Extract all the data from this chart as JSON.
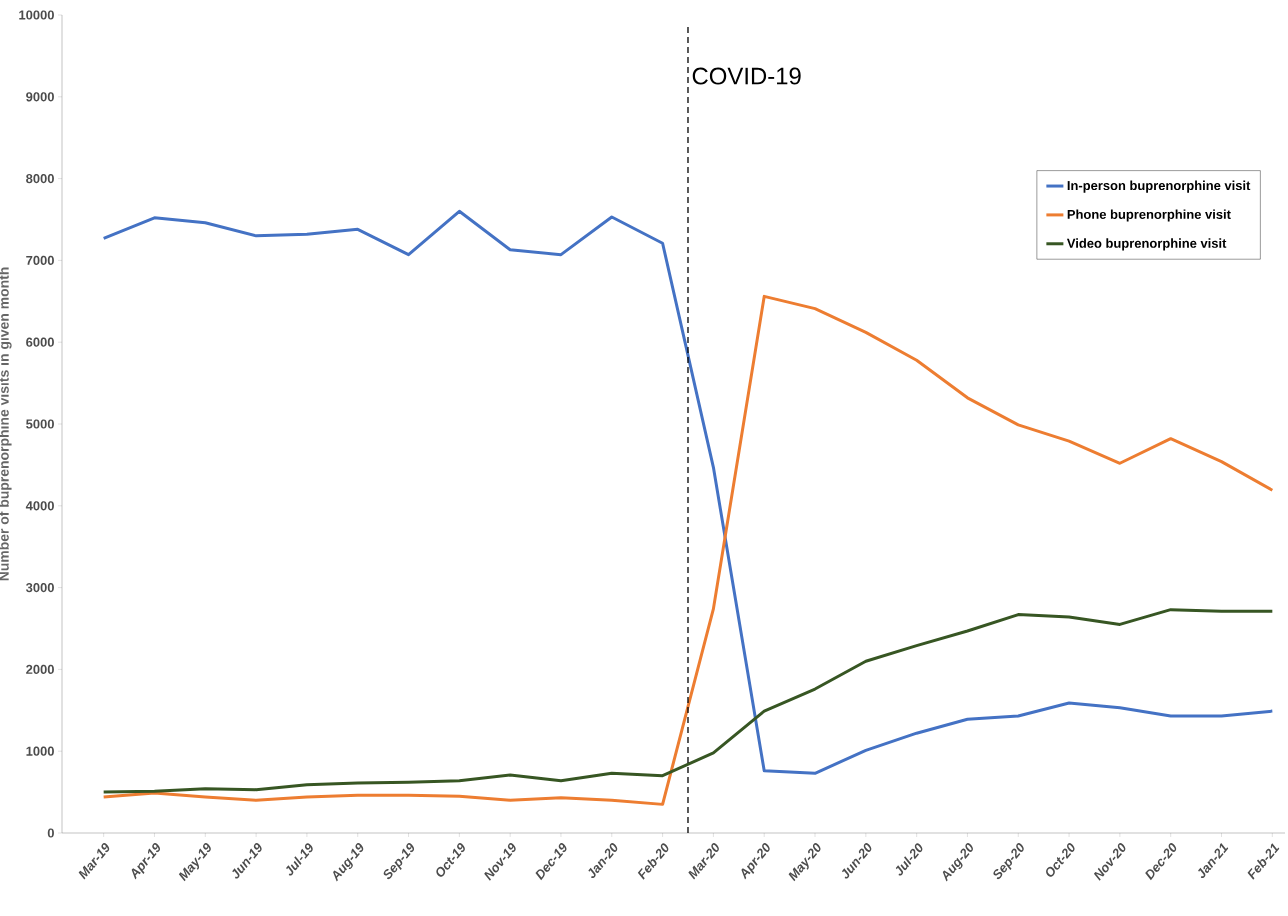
{
  "chart_data": {
    "type": "line",
    "ylabel": "Number of buprenorphine visits in given month",
    "categories": [
      "Mar-19",
      "Apr-19",
      "May-19",
      "Jun-19",
      "Jul-19",
      "Aug-19",
      "Sep-19",
      "Oct-19",
      "Nov-19",
      "Dec-19",
      "Jan-20",
      "Feb-20",
      "Mar-20",
      "Apr-20",
      "May-20",
      "Jun-20",
      "Jul-20",
      "Aug-20",
      "Sep-20",
      "Oct-20",
      "Nov-20",
      "Dec-20",
      "Jan-21",
      "Feb-21"
    ],
    "series": [
      {
        "name": "In-person buprenorphine visit",
        "color": "#4472c4",
        "values": [
          7270,
          7520,
          7460,
          7300,
          7320,
          7380,
          7070,
          7600,
          7130,
          7070,
          7530,
          7210,
          4470,
          760,
          730,
          1010,
          1220,
          1390,
          1430,
          1590,
          1530,
          1430,
          1430,
          1490
        ]
      },
      {
        "name": "Phone buprenorphine visit",
        "color": "#ed7d31",
        "values": [
          440,
          490,
          440,
          400,
          440,
          460,
          460,
          450,
          400,
          430,
          400,
          350,
          2740,
          6560,
          6410,
          6120,
          5780,
          5320,
          4990,
          4790,
          4520,
          4820,
          4540,
          4190
        ]
      },
      {
        "name": "Video buprenorphine visit",
        "color": "#375623",
        "values": [
          500,
          510,
          540,
          530,
          590,
          610,
          620,
          640,
          710,
          640,
          730,
          700,
          980,
          1490,
          1760,
          2100,
          2290,
          2470,
          2670,
          2640,
          2550,
          2730,
          2710,
          2710
        ]
      }
    ],
    "ylim": [
      0,
      10000
    ],
    "yticks": [
      0,
      1000,
      2000,
      3000,
      4000,
      5000,
      6000,
      7000,
      8000,
      9000,
      10000
    ],
    "legend": "top right",
    "annotations": [
      "COVID-19"
    ]
  }
}
